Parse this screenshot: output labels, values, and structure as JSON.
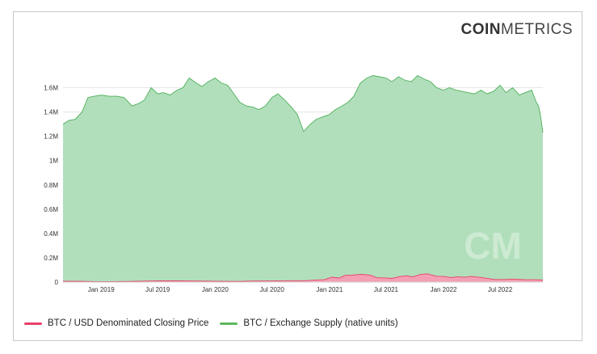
{
  "logo": {
    "bold": "COIN",
    "light": "METRICS"
  },
  "watermark": "CM",
  "colors": {
    "supply_fill": "#b2dfbb",
    "supply_line": "#4cb05a",
    "price_fill": "#f4a0b4",
    "price_line": "#e8426a"
  },
  "chart_data": {
    "type": "area",
    "ylim": [
      0,
      1750000
    ],
    "yticks": [
      0,
      200000,
      400000,
      600000,
      800000,
      1000000,
      1200000,
      1400000,
      1600000
    ],
    "ytick_labels": [
      "0",
      "0.2M",
      "0.4M",
      "0.6M",
      "0.8M",
      "1M",
      "1.2M",
      "1.4M",
      "1.6M"
    ],
    "xlim": [
      "2018-09-01",
      "2022-11-15"
    ],
    "xticks": [
      "2019-01-01",
      "2019-07-01",
      "2020-01-01",
      "2020-07-01",
      "2021-01-01",
      "2021-07-01",
      "2022-01-01",
      "2022-07-01"
    ],
    "xtick_labels": [
      "Jan 2019",
      "Jul 2019",
      "Jan 2020",
      "Jul 2020",
      "Jan 2021",
      "Jul 2021",
      "Jan 2022",
      "Jul 2022"
    ],
    "grid": true,
    "legend_position": "bottom-left",
    "series": [
      {
        "name": "BTC / Exchange Supply (native units)",
        "x": [
          "2018-09-01",
          "2018-09-20",
          "2018-10-10",
          "2018-11-01",
          "2018-11-20",
          "2018-12-10",
          "2019-01-01",
          "2019-01-25",
          "2019-02-20",
          "2019-03-15",
          "2019-04-10",
          "2019-05-01",
          "2019-05-20",
          "2019-06-10",
          "2019-07-01",
          "2019-07-20",
          "2019-08-10",
          "2019-09-01",
          "2019-09-20",
          "2019-10-10",
          "2019-11-01",
          "2019-11-20",
          "2019-12-10",
          "2020-01-01",
          "2020-01-20",
          "2020-02-10",
          "2020-03-01",
          "2020-03-20",
          "2020-04-10",
          "2020-05-01",
          "2020-05-20",
          "2020-06-10",
          "2020-07-01",
          "2020-07-20",
          "2020-08-10",
          "2020-09-01",
          "2020-09-20",
          "2020-10-10",
          "2020-11-01",
          "2020-11-20",
          "2020-12-10",
          "2021-01-01",
          "2021-01-20",
          "2021-02-10",
          "2021-03-01",
          "2021-03-20",
          "2021-04-10",
          "2021-05-01",
          "2021-05-20",
          "2021-06-10",
          "2021-07-01",
          "2021-07-20",
          "2021-08-10",
          "2021-09-01",
          "2021-09-20",
          "2021-10-10",
          "2021-11-01",
          "2021-11-20",
          "2021-12-10",
          "2022-01-01",
          "2022-01-20",
          "2022-02-10",
          "2022-03-01",
          "2022-03-20",
          "2022-04-10",
          "2022-05-01",
          "2022-05-20",
          "2022-06-10",
          "2022-07-01",
          "2022-07-20",
          "2022-08-10",
          "2022-09-01",
          "2022-09-20",
          "2022-10-10",
          "2022-10-25",
          "2022-11-01",
          "2022-11-08",
          "2022-11-15"
        ],
        "values": [
          1300000,
          1330000,
          1340000,
          1400000,
          1520000,
          1530000,
          1540000,
          1530000,
          1530000,
          1520000,
          1450000,
          1470000,
          1500000,
          1600000,
          1550000,
          1560000,
          1540000,
          1580000,
          1600000,
          1680000,
          1640000,
          1610000,
          1650000,
          1680000,
          1640000,
          1620000,
          1550000,
          1480000,
          1450000,
          1440000,
          1420000,
          1450000,
          1520000,
          1550000,
          1500000,
          1440000,
          1380000,
          1240000,
          1300000,
          1340000,
          1360000,
          1380000,
          1420000,
          1450000,
          1480000,
          1530000,
          1640000,
          1680000,
          1700000,
          1690000,
          1680000,
          1650000,
          1690000,
          1660000,
          1650000,
          1700000,
          1670000,
          1650000,
          1600000,
          1580000,
          1600000,
          1580000,
          1570000,
          1560000,
          1550000,
          1580000,
          1550000,
          1570000,
          1620000,
          1560000,
          1600000,
          1540000,
          1560000,
          1580000,
          1480000,
          1450000,
          1360000,
          1230000
        ]
      },
      {
        "name": "BTC / USD Denominated Closing Price",
        "x": [
          "2018-09-01",
          "2018-11-01",
          "2018-12-15",
          "2019-02-01",
          "2019-04-01",
          "2019-06-01",
          "2019-07-01",
          "2019-09-01",
          "2019-11-01",
          "2020-01-01",
          "2020-03-15",
          "2020-05-01",
          "2020-07-01",
          "2020-09-01",
          "2020-10-15",
          "2020-11-15",
          "2020-12-15",
          "2021-01-08",
          "2021-02-01",
          "2021-02-20",
          "2021-03-15",
          "2021-04-14",
          "2021-05-12",
          "2021-06-01",
          "2021-07-01",
          "2021-07-20",
          "2021-08-15",
          "2021-09-07",
          "2021-09-25",
          "2021-10-20",
          "2021-11-10",
          "2021-12-10",
          "2022-01-01",
          "2022-01-25",
          "2022-02-15",
          "2022-03-10",
          "2022-03-30",
          "2022-05-01",
          "2022-06-15",
          "2022-07-15",
          "2022-08-15",
          "2022-09-15",
          "2022-10-15",
          "2022-11-15"
        ],
        "values": [
          7000,
          6300,
          3500,
          3500,
          5000,
          8500,
          10500,
          10000,
          8500,
          7200,
          5000,
          8800,
          9200,
          11500,
          11500,
          16000,
          19000,
          40000,
          33000,
          55000,
          58000,
          63000,
          57000,
          36000,
          34000,
          30000,
          46000,
          52000,
          42000,
          64000,
          68000,
          48000,
          47000,
          37000,
          44000,
          39000,
          47000,
          38000,
          21000,
          21000,
          24000,
          20000,
          19500,
          16500
        ]
      }
    ]
  },
  "legend": [
    {
      "label": "BTC / USD Denominated Closing Price",
      "color": "#e8426a"
    },
    {
      "label": "BTC / Exchange Supply (native units)",
      "color": "#5cb85c"
    }
  ]
}
